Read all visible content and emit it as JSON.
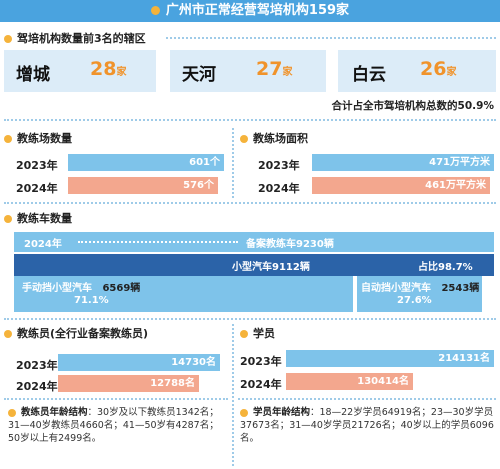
{
  "title": "广州市正常经营驾培机构159家",
  "top_districts": {
    "heading": "驾培机构数量前3名的辖区",
    "items": [
      {
        "name": "增城",
        "value": "28",
        "unit": "家"
      },
      {
        "name": "天河",
        "value": "27",
        "unit": "家"
      },
      {
        "name": "白云",
        "value": "26",
        "unit": "家"
      }
    ],
    "summary": "合计占全市驾培机构总数的50.9%"
  },
  "chart_data": [
    {
      "type": "bar",
      "title": "教练场数量",
      "categories": [
        "2023年",
        "2024年"
      ],
      "values": [
        601,
        576
      ],
      "value_labels": [
        "601个",
        "576个"
      ],
      "colors": [
        "#7ec3ea",
        "#f3a78e"
      ]
    },
    {
      "type": "bar",
      "title": "教练场面积",
      "categories": [
        "2023年",
        "2024年"
      ],
      "values": [
        471,
        461
      ],
      "value_labels": [
        "471万平方米",
        "461万平方米"
      ],
      "colors": [
        "#7ec3ea",
        "#f3a78e"
      ]
    },
    {
      "type": "bar",
      "title": "教练车数量",
      "categories": [
        "2024年"
      ],
      "total_label": "备案教练车9230辆",
      "small_car_label": "小型汽车9112辆",
      "small_car_share": "占比98.7%",
      "manual": {
        "label": "手动挡小型汽车",
        "count": "6569辆",
        "pct": "71.1%",
        "fraction": 0.711
      },
      "auto": {
        "label": "自动挡小型汽车",
        "count": "2543辆",
        "pct": "27.6%",
        "fraction": 0.276
      }
    },
    {
      "type": "bar",
      "title": "教练员(全行业备案教练员)",
      "categories": [
        "2023年",
        "2024年"
      ],
      "values": [
        14730,
        12788
      ],
      "value_labels": [
        "14730名",
        "12788名"
      ],
      "colors": [
        "#7ec3ea",
        "#f3a78e"
      ]
    },
    {
      "type": "bar",
      "title": "学员",
      "categories": [
        "2023年",
        "2024年"
      ],
      "values": [
        214131,
        130414
      ],
      "value_labels": [
        "214131名",
        "130414名"
      ],
      "colors": [
        "#7ec3ea",
        "#f3a78e"
      ]
    }
  ],
  "notes": {
    "coach_age_head": "教练员年龄结构",
    "coach_age_text": "：30岁及以下教练员1342名；31—40岁教练员4660名；41—50岁有4287名；50岁以上有2499名。",
    "student_age_head": "学员年龄结构",
    "student_age_text": "：18—22岁学员64919名；23—30岁学员37673名；31—40岁学员21726名；40岁以上的学员6096名。"
  }
}
